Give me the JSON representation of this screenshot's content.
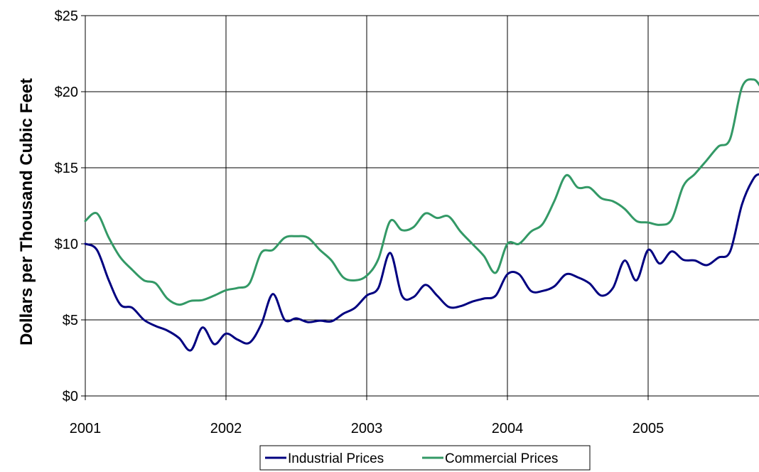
{
  "chart_data": {
    "type": "line",
    "title": "",
    "xlabel": "",
    "ylabel": "Dollars per Thousand Cubic Feet",
    "xlim": [
      2001,
      2005.8
    ],
    "ylim": [
      0,
      25
    ],
    "x_ticks": [
      "2001",
      "2002",
      "2003",
      "2004",
      "2005"
    ],
    "y_ticks": [
      "$0",
      "$5",
      "$10",
      "$15",
      "$20",
      "$25"
    ],
    "grid": true,
    "legend_position": "bottom-center",
    "series": [
      {
        "name": "Industrial Prices",
        "color": "#000080",
        "points": [
          [
            2001.0,
            10.0
          ],
          [
            2001.083,
            9.6
          ],
          [
            2001.167,
            7.6
          ],
          [
            2001.25,
            6.0
          ],
          [
            2001.333,
            5.8
          ],
          [
            2001.417,
            5.0
          ],
          [
            2001.5,
            4.6
          ],
          [
            2001.583,
            4.3
          ],
          [
            2001.667,
            3.8
          ],
          [
            2001.75,
            3.0
          ],
          [
            2001.833,
            4.5
          ],
          [
            2001.917,
            3.4
          ],
          [
            2002.0,
            4.1
          ],
          [
            2002.083,
            3.7
          ],
          [
            2002.167,
            3.5
          ],
          [
            2002.25,
            4.7
          ],
          [
            2002.333,
            6.7
          ],
          [
            2002.417,
            5.0
          ],
          [
            2002.5,
            5.1
          ],
          [
            2002.583,
            4.85
          ],
          [
            2002.667,
            4.95
          ],
          [
            2002.75,
            4.9
          ],
          [
            2002.833,
            5.4
          ],
          [
            2002.917,
            5.8
          ],
          [
            2003.0,
            6.6
          ],
          [
            2003.083,
            7.1
          ],
          [
            2003.167,
            9.4
          ],
          [
            2003.25,
            6.6
          ],
          [
            2003.333,
            6.5
          ],
          [
            2003.417,
            7.3
          ],
          [
            2003.5,
            6.6
          ],
          [
            2003.583,
            5.85
          ],
          [
            2003.667,
            5.9
          ],
          [
            2003.75,
            6.2
          ],
          [
            2003.833,
            6.4
          ],
          [
            2003.917,
            6.6
          ],
          [
            2004.0,
            8.0
          ],
          [
            2004.083,
            8.0
          ],
          [
            2004.167,
            6.9
          ],
          [
            2004.25,
            6.9
          ],
          [
            2004.333,
            7.2
          ],
          [
            2004.417,
            8.0
          ],
          [
            2004.5,
            7.8
          ],
          [
            2004.583,
            7.4
          ],
          [
            2004.667,
            6.6
          ],
          [
            2004.75,
            7.1
          ],
          [
            2004.833,
            8.9
          ],
          [
            2004.917,
            7.6
          ],
          [
            2005.0,
            9.6
          ],
          [
            2005.083,
            8.7
          ],
          [
            2005.167,
            9.5
          ],
          [
            2005.25,
            8.95
          ],
          [
            2005.333,
            8.9
          ],
          [
            2005.417,
            8.6
          ],
          [
            2005.5,
            9.1
          ],
          [
            2005.583,
            9.5
          ],
          [
            2005.667,
            12.6
          ],
          [
            2005.75,
            14.3
          ],
          [
            2005.8,
            14.6
          ]
        ]
      },
      {
        "name": "Commercial Prices",
        "color": "#339966",
        "points": [
          [
            2001.0,
            11.5
          ],
          [
            2001.083,
            12.0
          ],
          [
            2001.167,
            10.4
          ],
          [
            2001.25,
            9.1
          ],
          [
            2001.333,
            8.3
          ],
          [
            2001.417,
            7.6
          ],
          [
            2001.5,
            7.4
          ],
          [
            2001.583,
            6.4
          ],
          [
            2001.667,
            6.0
          ],
          [
            2001.75,
            6.25
          ],
          [
            2001.833,
            6.3
          ],
          [
            2001.917,
            6.6
          ],
          [
            2002.0,
            6.95
          ],
          [
            2002.083,
            7.1
          ],
          [
            2002.167,
            7.4
          ],
          [
            2002.25,
            9.4
          ],
          [
            2002.333,
            9.6
          ],
          [
            2002.417,
            10.4
          ],
          [
            2002.5,
            10.5
          ],
          [
            2002.583,
            10.4
          ],
          [
            2002.667,
            9.6
          ],
          [
            2002.75,
            8.9
          ],
          [
            2002.833,
            7.8
          ],
          [
            2002.917,
            7.6
          ],
          [
            2003.0,
            7.9
          ],
          [
            2003.083,
            9.0
          ],
          [
            2003.167,
            11.5
          ],
          [
            2003.25,
            10.9
          ],
          [
            2003.333,
            11.1
          ],
          [
            2003.417,
            12.0
          ],
          [
            2003.5,
            11.7
          ],
          [
            2003.583,
            11.8
          ],
          [
            2003.667,
            10.8
          ],
          [
            2003.75,
            10.0
          ],
          [
            2003.833,
            9.2
          ],
          [
            2003.917,
            8.1
          ],
          [
            2004.0,
            10.0
          ],
          [
            2004.083,
            10.0
          ],
          [
            2004.167,
            10.8
          ],
          [
            2004.25,
            11.3
          ],
          [
            2004.333,
            12.8
          ],
          [
            2004.417,
            14.5
          ],
          [
            2004.5,
            13.7
          ],
          [
            2004.583,
            13.7
          ],
          [
            2004.667,
            13.0
          ],
          [
            2004.75,
            12.8
          ],
          [
            2004.833,
            12.3
          ],
          [
            2004.917,
            11.5
          ],
          [
            2005.0,
            11.4
          ],
          [
            2005.083,
            11.25
          ],
          [
            2005.167,
            11.6
          ],
          [
            2005.25,
            13.8
          ],
          [
            2005.333,
            14.6
          ],
          [
            2005.417,
            15.5
          ],
          [
            2005.5,
            16.4
          ],
          [
            2005.583,
            16.9
          ],
          [
            2005.667,
            20.3
          ],
          [
            2005.75,
            20.8
          ],
          [
            2005.8,
            20.3
          ]
        ]
      }
    ]
  }
}
